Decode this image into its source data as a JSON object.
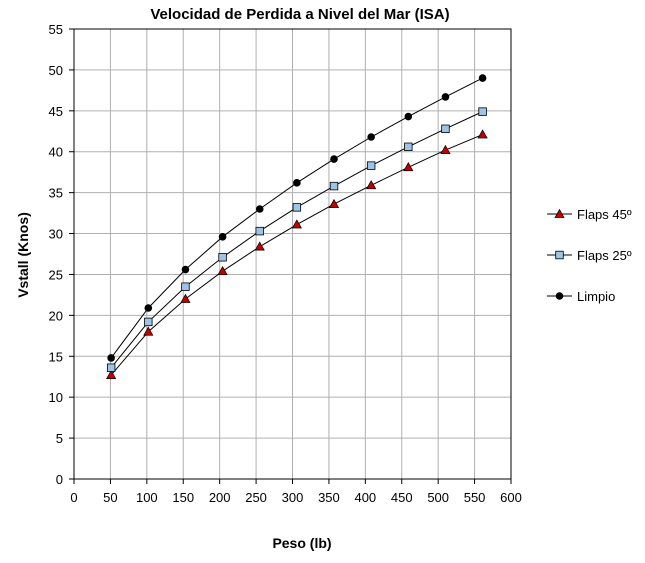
{
  "chart_data": {
    "type": "line",
    "title": "Velocidad de Perdida a Nivel del Mar (ISA)",
    "xlabel": "Peso (lb)",
    "ylabel": "Vstall (Knos)",
    "xlim": [
      0,
      600
    ],
    "ylim": [
      0,
      55
    ],
    "x_ticks": [
      0,
      50,
      100,
      150,
      200,
      250,
      300,
      350,
      400,
      450,
      500,
      550,
      600
    ],
    "y_ticks": [
      0,
      5,
      10,
      15,
      20,
      25,
      30,
      35,
      40,
      45,
      50,
      55
    ],
    "x_tick_labels": [
      "0",
      "50",
      "100",
      "150",
      "200",
      "250",
      "300",
      "350",
      "400",
      "450",
      "500",
      "550",
      "600"
    ],
    "y_tick_labels": [
      "0",
      "5",
      "10",
      "15",
      "20",
      "25",
      "30",
      "35",
      "40",
      "45",
      "50",
      "55"
    ],
    "grid": {
      "horizontal": true,
      "vertical": true
    },
    "legend_position": "right",
    "x": [
      51,
      102,
      153,
      204,
      255,
      306,
      357,
      408,
      459,
      510,
      561
    ],
    "series": [
      {
        "name": "Flaps 45º",
        "marker": "triangle",
        "marker_color": "#c00000",
        "values": [
          12.7,
          18.0,
          22.0,
          25.4,
          28.4,
          31.1,
          33.6,
          35.9,
          38.1,
          40.2,
          42.1
        ]
      },
      {
        "name": "Flaps 25º",
        "marker": "square",
        "marker_color": "#9dc3e6",
        "values": [
          13.6,
          19.2,
          23.5,
          27.1,
          30.3,
          33.2,
          35.8,
          38.3,
          40.6,
          42.8,
          44.9
        ]
      },
      {
        "name": "Limpio",
        "marker": "circle",
        "marker_color": "#000000",
        "values": [
          14.8,
          20.9,
          25.6,
          29.6,
          33.0,
          36.2,
          39.1,
          41.8,
          44.3,
          46.7,
          49.0
        ]
      }
    ]
  }
}
